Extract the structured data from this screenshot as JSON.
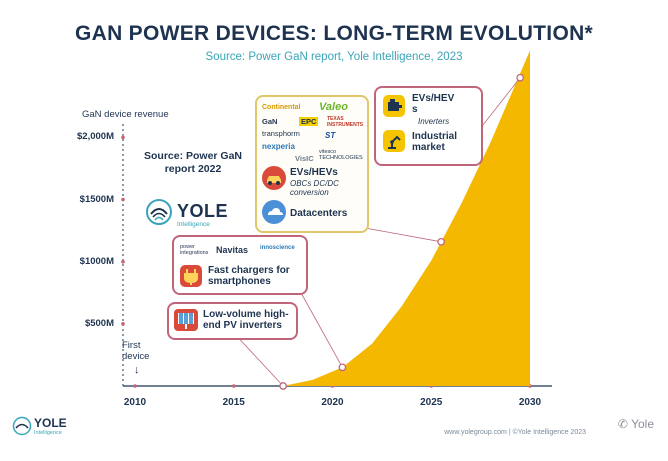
{
  "header": {
    "title": "GAN POWER DEVICES: LONG-TERM EVOLUTION*",
    "subtitle": "Source: Power GaN report, Yole Intelligence, 2023"
  },
  "chart_data": {
    "type": "area",
    "ylabel": "GaN device revenue",
    "x_ticks": [
      "2010",
      "2015",
      "2020",
      "2025",
      "2030"
    ],
    "y_ticks": [
      "$500M",
      "$1000M",
      "$1500M",
      "$2,000M"
    ],
    "x_range": [
      2010,
      2030
    ],
    "series": [
      {
        "x": [
          2017.5,
          2019,
          2020.5,
          2022,
          2023.5,
          2025,
          2026.5,
          2028,
          2029,
          2030
        ],
        "y": [
          0,
          50,
          150,
          340,
          640,
          1010,
          1460,
          1960,
          2330,
          2700
        ]
      }
    ],
    "milestones": [
      {
        "x": 2017.5,
        "y": 0
      },
      {
        "x": 2020.5,
        "y": 150
      },
      {
        "x": 2025.5,
        "y": 1160
      },
      {
        "x": 2029.5,
        "y": 2480
      }
    ],
    "fill_color": "#f5b800",
    "grid": false
  },
  "annotations": {
    "first_device": "First device",
    "first_arrow": "↓",
    "source_old": "Source: Power GaN report 2022",
    "pv_box": {
      "label": "Low-volume high-end PV inverters"
    },
    "chargers_box": {
      "logos": [
        "power integrations",
        "Navitas",
        "innoscience"
      ],
      "label": "Fast chargers for smartphones"
    },
    "auto_box": {
      "logos": [
        "Continental",
        "Valeo",
        "GaN",
        "EPC",
        "TEXAS INSTRUMENTS",
        "transphorm",
        "ST",
        "nexperia",
        "VisIC",
        "vitesco TECHNOLOGIES"
      ],
      "evs_label": "EVs/HEVs",
      "evs_sub": "OBCs DC/DC conversion",
      "dc_label": "Datacenters"
    },
    "future_box": {
      "evs_label": "EVs/HEV s",
      "evs_sub": "Inverters",
      "ind_label": "Industrial market"
    }
  },
  "logo": {
    "name": "YOLE",
    "sub": "Intelligence"
  },
  "footer": {
    "text": "www.yolegroup.com | ©Yole Intelligence 2023",
    "watermark": "Yole"
  },
  "colors": {
    "navy": "#1e3350",
    "teal": "#3aa5b8",
    "pink": "#c0667a",
    "gold": "#f5b800"
  }
}
